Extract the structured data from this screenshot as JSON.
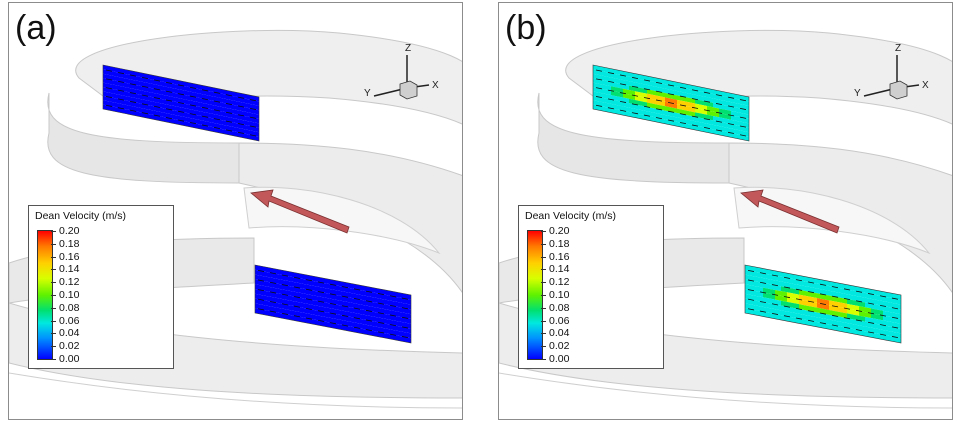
{
  "panels": [
    {
      "label": "(a)",
      "mode": "low"
    },
    {
      "label": "(b)",
      "mode": "high"
    }
  ],
  "legend": {
    "title": "Dean Velocity (m/s)",
    "ticks": [
      "0.20",
      "0.18",
      "0.16",
      "0.14",
      "0.12",
      "0.10",
      "0.08",
      "0.06",
      "0.04",
      "0.02",
      "0.00"
    ],
    "colormap": [
      "#0000ff",
      "#0090ff",
      "#00e8e0",
      "#00e070",
      "#5ff200",
      "#d8ff00",
      "#ffd000",
      "#ff7a00",
      "#ff0000"
    ]
  },
  "axes": {
    "z": "Z",
    "y": "Y",
    "x": "X"
  },
  "flow_arrow_color": "#c2585a"
}
